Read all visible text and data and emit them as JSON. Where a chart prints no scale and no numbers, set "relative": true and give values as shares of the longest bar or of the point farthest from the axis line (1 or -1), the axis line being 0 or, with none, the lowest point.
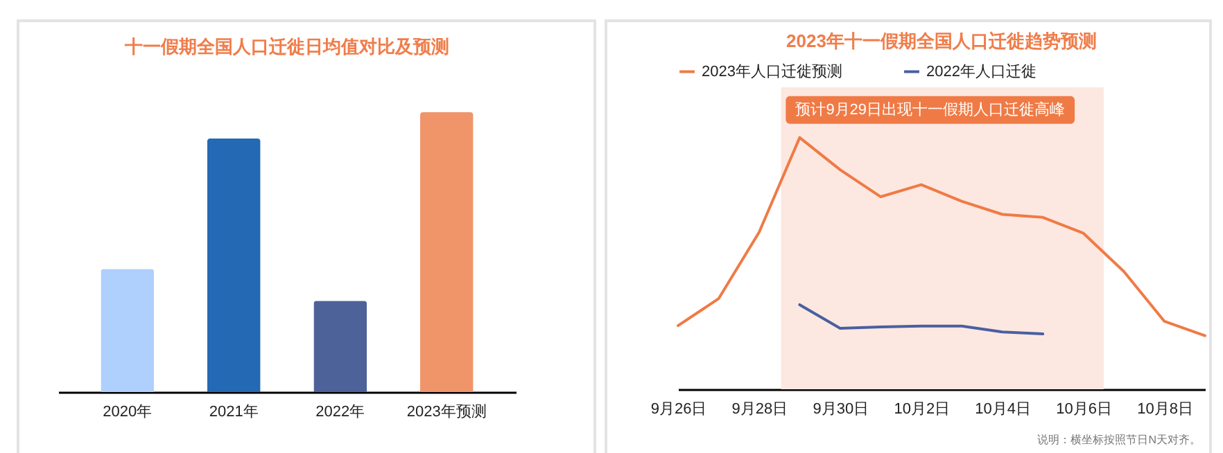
{
  "chart_data": [
    {
      "type": "bar",
      "title": "十一假期全国人口迁徙日均值对比及预测",
      "relative": true,
      "categories": [
        "2020年",
        "2021年",
        "2022年",
        "2023年预测"
      ],
      "values": [
        0.44,
        0.906,
        0.326,
        1
      ],
      "colors": [
        "#afcffc",
        "#2469b3",
        "#4d6299",
        "#f0956a"
      ]
    },
    {
      "type": "line",
      "title": "2023年十一假期全国人口迁徙趋势预测",
      "relative": true,
      "legend": "top",
      "x": [
        "--09-26",
        "--09-27",
        "--09-28",
        "--09-29",
        "--09-30",
        "--10-01",
        "--10-02",
        "--10-03",
        "--10-04",
        "--10-05",
        "--10-06",
        "--10-07",
        "--10-08",
        "--10-09"
      ],
      "xlim": [
        "--09-26",
        "--10-09"
      ],
      "xticks": [
        {
          "value": "--09-26",
          "label": "9月26日"
        },
        {
          "value": "--09-28",
          "label": "9月28日"
        },
        {
          "value": "--09-30",
          "label": "9月30日"
        },
        {
          "value": "--10-02",
          "label": "10月2日"
        },
        {
          "value": "--10-04",
          "label": "10月4日"
        },
        {
          "value": "--10-06",
          "label": "10月6日"
        },
        {
          "value": "--10-08",
          "label": "10月8日"
        }
      ],
      "series": [
        {
          "name": "2023年人口迁徙预测",
          "color": "#f07a45",
          "values": [
            0.253,
            0.36,
            0.624,
            1,
            0.872,
            0.765,
            0.813,
            0.747,
            0.695,
            0.683,
            0.62,
            0.468,
            0.27,
            0.213
          ]
        },
        {
          "name": "2022年人口迁徙",
          "color": "#4a5fa0",
          "values": [
            null,
            null,
            null,
            0.336,
            0.242,
            0.248,
            0.251,
            0.251,
            0.228,
            0.22,
            null,
            null,
            null,
            null
          ]
        }
      ],
      "bands": [
        {
          "axis": "x",
          "from": "--09-28T13:00",
          "to": "--10-06T12:00",
          "color": "#fce8e0"
        }
      ],
      "annotations": [
        {
          "text": "预计9月29日出现十一假期人口迁徙高峰",
          "x": "--09-29",
          "y": 1
        },
        "说明：横坐标按照节日N天对齐。"
      ]
    }
  ]
}
